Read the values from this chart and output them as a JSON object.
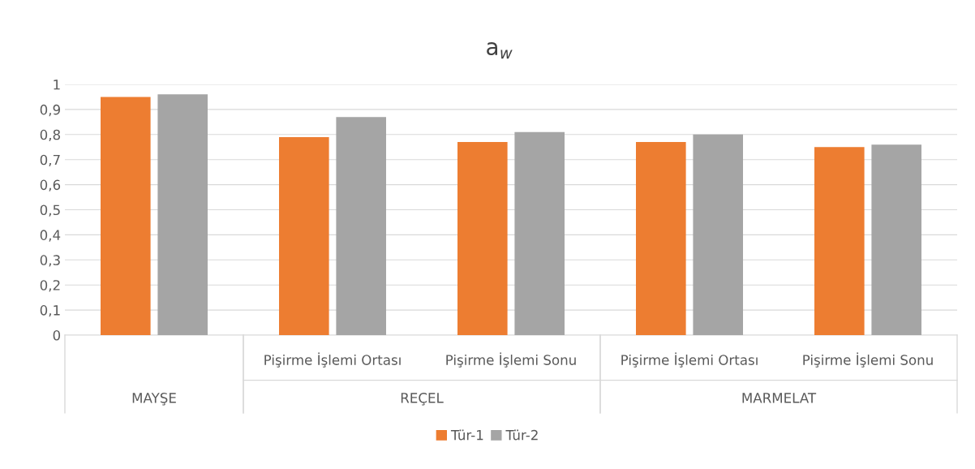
{
  "chart_data": {
    "type": "bar",
    "title": "a$_{w}$",
    "categories": [
      null,
      "Pişirme İşlemi Ortası",
      "Pişirme İşlemi Sonu",
      "Pişirme İşlemi Ortası",
      "Pişirme İşlemi Sonu"
    ],
    "annotations": [
      "MAYŞE",
      "REÇEL",
      "MARMELAT"
    ],
    "series": [
      {
        "name": "Tür-1",
        "color": "#ed7d31",
        "values": [
          0.95,
          0.79,
          0.77,
          0.77,
          0.75
        ]
      },
      {
        "name": "Tür-2",
        "color": "#a5a5a5",
        "values": [
          0.96,
          0.87,
          0.81,
          0.8,
          0.76
        ]
      }
    ],
    "ylim": [
      0,
      1
    ],
    "yticks": [
      0,
      {
        "value": 0.1,
        "label": "0,1"
      },
      {
        "value": 0.2,
        "label": "0,2"
      },
      {
        "value": 0.3,
        "label": "0,3"
      },
      {
        "value": 0.4,
        "label": "0,4"
      },
      {
        "value": 0.5,
        "label": "0,5"
      },
      {
        "value": 0.6,
        "label": "0,6"
      },
      {
        "value": 0.7,
        "label": "0,7"
      },
      {
        "value": 0.8,
        "label": "0,8"
      },
      {
        "value": 0.9,
        "label": "0,9"
      },
      1
    ],
    "grid": "y",
    "legend": "bottom"
  }
}
